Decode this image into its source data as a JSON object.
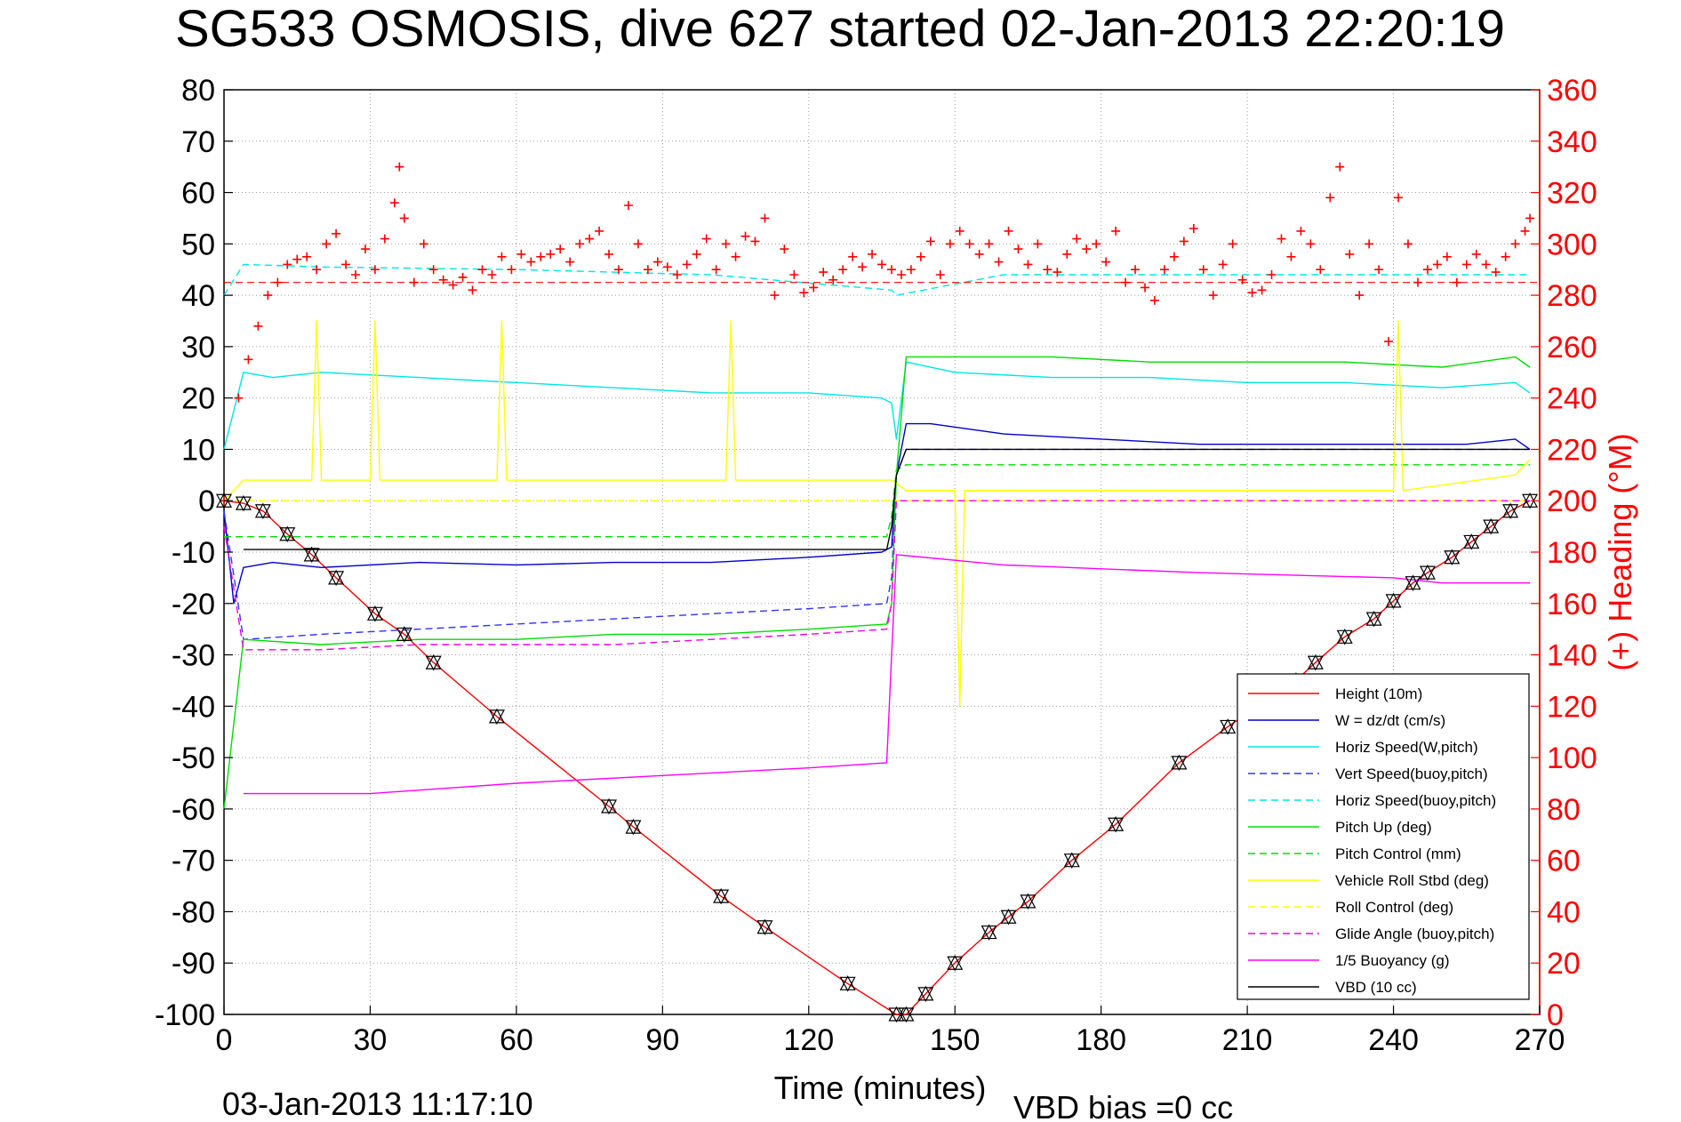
{
  "title": "SG533 OSMOSIS, dive 627 started 02-Jan-2013 22:20:19",
  "footer_left": "03-Jan-2013 11:17:10",
  "footer_right": "VBD bias =0 cc",
  "chart_data": {
    "type": "line",
    "title": "SG533 OSMOSIS, dive 627 started 02-Jan-2013 22:20:19",
    "xlabel": "Time (minutes)",
    "ylabel": "",
    "y2label": "(+) Heading (°M)",
    "xlim": [
      0,
      270
    ],
    "ylim": [
      -100,
      80
    ],
    "y2lim": [
      0,
      360
    ],
    "xticks": [
      "0",
      "30",
      "60",
      "90",
      "120",
      "150",
      "180",
      "210",
      "240",
      "270"
    ],
    "yticks": [
      "-100",
      "-90",
      "-80",
      "-70",
      "-60",
      "-50",
      "-40",
      "-30",
      "-20",
      "-10",
      "0",
      "10",
      "20",
      "30",
      "40",
      "50",
      "60",
      "70",
      "80"
    ],
    "y2ticks": [
      "0",
      "20",
      "40",
      "60",
      "80",
      "100",
      "120",
      "140",
      "160",
      "180",
      "200",
      "220",
      "240",
      "260",
      "280",
      "300",
      "320",
      "340",
      "360"
    ],
    "grid": true,
    "legend_position": "bottom-right",
    "series": [
      {
        "name": "Height (10m)",
        "color": "#ff0000",
        "style": "solid",
        "markers": "triangle",
        "x": [
          0,
          4,
          8,
          13,
          18,
          23,
          31,
          37,
          43,
          56,
          79,
          84,
          102,
          111,
          128,
          138,
          140,
          144,
          150,
          157,
          161,
          165,
          174,
          183,
          196,
          206,
          220,
          224,
          230,
          236,
          240,
          244,
          247,
          252,
          256,
          260,
          264,
          268
        ],
        "y": [
          0,
          -0.5,
          -2,
          -6.5,
          -10.5,
          -15,
          -22,
          -26,
          -31.5,
          -42,
          -59.5,
          -63.5,
          -77,
          -83,
          -94,
          -100,
          -100,
          -96,
          -90,
          -84,
          -81,
          -78,
          -70,
          -63,
          -51,
          -44,
          -35,
          -31.5,
          -26.5,
          -23,
          -19.5,
          -16,
          -14,
          -11,
          -8,
          -5,
          -2,
          0
        ]
      },
      {
        "name": "W = dz/dt (cm/s)",
        "color": "#0000cc",
        "style": "solid",
        "x": [
          0,
          2,
          4,
          10,
          20,
          40,
          60,
          80,
          100,
          120,
          135,
          137,
          138,
          140,
          145,
          160,
          180,
          200,
          220,
          240,
          255,
          265,
          268
        ],
        "y": [
          -2,
          -20,
          -13,
          -12,
          -13,
          -12,
          -12.5,
          -12,
          -12,
          -11,
          -10,
          -9,
          5,
          15,
          15,
          13,
          12,
          11,
          11,
          11,
          11,
          12,
          10
        ]
      },
      {
        "name": "Horiz Speed(W,pitch)",
        "color": "#00e5e5",
        "style": "solid",
        "x": [
          0,
          4,
          10,
          20,
          40,
          60,
          80,
          100,
          120,
          135,
          137,
          138,
          140,
          150,
          170,
          190,
          210,
          230,
          250,
          265,
          268
        ],
        "y": [
          10,
          25,
          24,
          25,
          24,
          23,
          22,
          21,
          21,
          20,
          19,
          12,
          27,
          25,
          24,
          24,
          23,
          23,
          22,
          23,
          21
        ]
      },
      {
        "name": "Vert Speed(buoy,pitch)",
        "color": "#3333ff",
        "style": "dashed",
        "x": [
          0,
          4,
          20,
          40,
          60,
          80,
          100,
          120,
          136,
          137,
          138,
          140,
          160,
          200,
          240,
          268
        ],
        "y": [
          -2,
          -27,
          -26,
          -25,
          -24,
          -23,
          -22,
          -21,
          -20,
          -15,
          5,
          10,
          10,
          10,
          10,
          10
        ]
      },
      {
        "name": "Horiz Speed(buoy,pitch)",
        "color": "#00e5e5",
        "style": "dashed",
        "x": [
          0,
          4,
          20,
          60,
          100,
          137,
          138,
          160,
          200,
          240,
          268
        ],
        "y": [
          40,
          46,
          45.5,
          45,
          44,
          41,
          40,
          44,
          44,
          44,
          44
        ]
      },
      {
        "name": "Pitch Up (deg)",
        "color": "#00dd00",
        "style": "solid",
        "x": [
          0,
          4,
          20,
          40,
          60,
          80,
          100,
          120,
          136,
          137,
          138,
          140,
          150,
          170,
          190,
          210,
          230,
          250,
          265,
          268
        ],
        "y": [
          -60,
          -27,
          -28,
          -27,
          -27,
          -26,
          -26,
          -25,
          -24,
          -20,
          5,
          28,
          28,
          28,
          27,
          27,
          27,
          26,
          28,
          26
        ]
      },
      {
        "name": "Pitch Control (mm)",
        "color": "#00dd00",
        "style": "dashed",
        "x": [
          0,
          4,
          20,
          60,
          100,
          136,
          137,
          138,
          140,
          160,
          200,
          240,
          268
        ],
        "y": [
          -7,
          -7,
          -7,
          -7,
          -7,
          -7,
          -3,
          6,
          7,
          7,
          7,
          7,
          7
        ]
      },
      {
        "name": "Vehicle Roll Stbd (deg)",
        "color": "#ffff00",
        "style": "solid",
        "x": [
          0,
          4,
          18,
          19,
          20,
          30,
          31,
          32,
          50,
          56,
          57,
          58,
          80,
          103,
          104,
          105,
          120,
          137,
          140,
          150,
          151,
          152,
          180,
          240,
          241,
          242,
          265,
          268
        ],
        "y": [
          0,
          4,
          4,
          35,
          4,
          4,
          35,
          4,
          4,
          4,
          35,
          4,
          4,
          4,
          35,
          4,
          4,
          4,
          2,
          2,
          -40,
          2,
          2,
          2,
          35,
          2,
          5,
          8
        ]
      },
      {
        "name": "Roll Control (deg)",
        "color": "#ffff00",
        "style": "dashed",
        "x": [
          0,
          268
        ],
        "y": [
          0,
          0
        ]
      },
      {
        "name": "Glide Angle (buoy,pitch)",
        "color": "#ee00ee",
        "style": "dashed",
        "x": [
          0,
          4,
          20,
          40,
          60,
          80,
          100,
          120,
          136,
          137,
          138,
          140,
          160,
          200,
          240,
          268
        ],
        "y": [
          -5,
          -29,
          -29,
          -28,
          -28,
          -28,
          -27,
          -26,
          -25,
          -20,
          0,
          0,
          0,
          0,
          0,
          0
        ]
      },
      {
        "name": "1/5 Buoyancy (g)",
        "color": "#ff00ff",
        "style": "solid",
        "x": [
          4,
          30,
          60,
          90,
          120,
          136,
          137,
          138,
          160,
          200,
          240,
          250,
          268
        ],
        "y": [
          -57,
          -57,
          -55,
          -53.5,
          -52,
          -51,
          -30,
          -10.5,
          -12.5,
          -14,
          -15,
          -16,
          -16
        ]
      },
      {
        "name": "VBD (10 cc)",
        "color": "#000000",
        "style": "solid",
        "x": [
          4,
          30,
          60,
          90,
          120,
          136,
          137,
          138,
          140,
          160,
          200,
          240,
          268
        ],
        "y": [
          -9.5,
          -9.5,
          -9.5,
          -9.5,
          -9.5,
          -9.5,
          -5,
          5,
          10,
          10,
          10,
          10,
          10
        ]
      }
    ],
    "heading": {
      "name": "(+) Heading (°M)",
      "color": "#ff0000",
      "marker": "plus",
      "axis": "right",
      "reference": 285,
      "x": [
        0,
        3,
        5,
        7,
        9,
        11,
        13,
        15,
        17,
        19,
        21,
        23,
        25,
        27,
        29,
        31,
        33,
        35,
        36,
        37,
        39,
        41,
        43,
        45,
        47,
        49,
        51,
        53,
        55,
        57,
        59,
        61,
        63,
        65,
        67,
        69,
        71,
        73,
        75,
        77,
        79,
        81,
        83,
        85,
        87,
        89,
        91,
        93,
        95,
        97,
        99,
        101,
        103,
        105,
        107,
        109,
        111,
        113,
        115,
        117,
        119,
        121,
        123,
        125,
        127,
        129,
        131,
        133,
        135,
        137,
        139,
        141,
        143,
        145,
        147,
        149,
        151,
        153,
        155,
        157,
        159,
        161,
        163,
        165,
        167,
        169,
        171,
        173,
        175,
        177,
        179,
        181,
        183,
        185,
        187,
        189,
        191,
        193,
        195,
        197,
        199,
        201,
        203,
        205,
        207,
        209,
        211,
        213,
        215,
        217,
        219,
        221,
        223,
        225,
        227,
        229,
        231,
        233,
        235,
        237,
        239,
        241,
        243,
        245,
        247,
        249,
        251,
        253,
        255,
        257,
        259,
        261,
        263,
        265,
        267,
        268
      ],
      "y": [
        200,
        240,
        255,
        268,
        280,
        285,
        292,
        294,
        295,
        290,
        300,
        304,
        292,
        288,
        298,
        290,
        302,
        316,
        330,
        310,
        285,
        300,
        290,
        286,
        284,
        287,
        282,
        290,
        288,
        295,
        290,
        296,
        293,
        295,
        296,
        298,
        293,
        300,
        302,
        305,
        296,
        290,
        315,
        300,
        290,
        293,
        291,
        288,
        292,
        296,
        302,
        290,
        300,
        295,
        303,
        301,
        310,
        280,
        298,
        288,
        281,
        283,
        289,
        286,
        290,
        295,
        291,
        296,
        292,
        290,
        288,
        290,
        295,
        301,
        288,
        300,
        305,
        300,
        296,
        300,
        293,
        305,
        298,
        292,
        300,
        290,
        289,
        296,
        302,
        298,
        300,
        293,
        305,
        285,
        290,
        283,
        278,
        290,
        295,
        301,
        306,
        290,
        280,
        292,
        300,
        286,
        281,
        282,
        288,
        302,
        295,
        305,
        300,
        290,
        318,
        330,
        296,
        280,
        300,
        290,
        262,
        318,
        300,
        285,
        290,
        292,
        295,
        285,
        292,
        296,
        292,
        289,
        295,
        300,
        305,
        310
      ]
    }
  }
}
